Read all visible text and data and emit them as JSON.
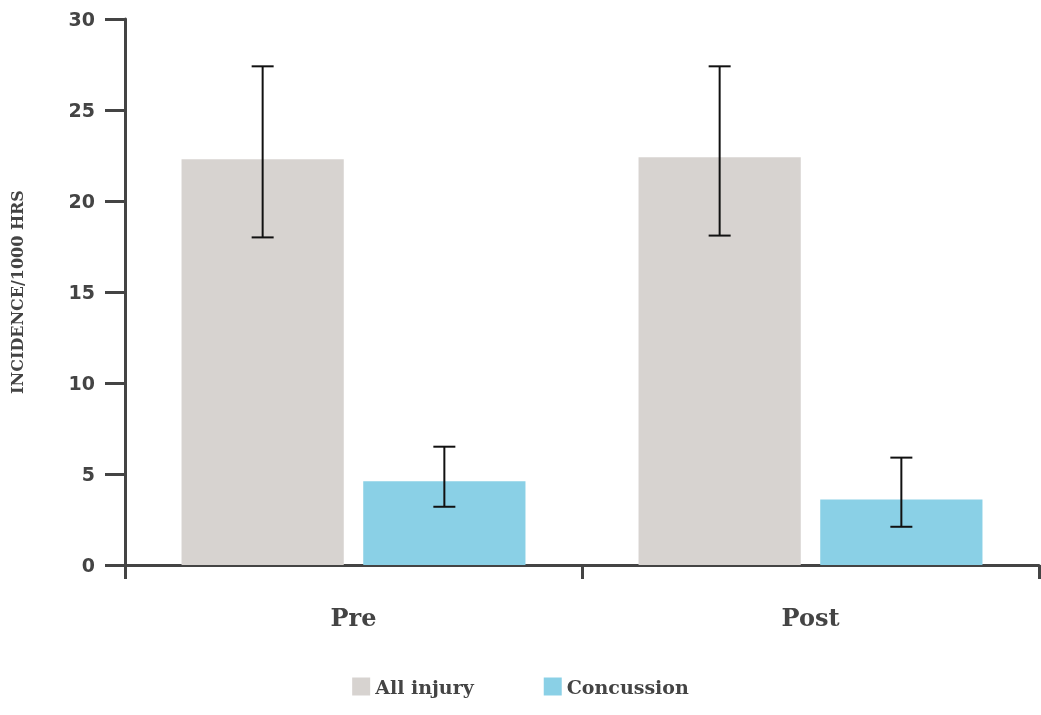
{
  "chart_data": {
    "type": "bar",
    "ylabel": "INCIDENCE/1000 HRS",
    "categories": [
      "Pre",
      "Post"
    ],
    "series": [
      {
        "name": "All injury",
        "color": "#d7d3d0",
        "values": [
          22.3,
          22.4
        ],
        "errors": [
          [
            18.0,
            27.4
          ],
          [
            18.1,
            27.4
          ]
        ]
      },
      {
        "name": "Concussion",
        "color": "#8ad0e6",
        "values": [
          4.6,
          3.6
        ],
        "errors": [
          [
            3.2,
            6.5
          ],
          [
            2.1,
            5.9
          ]
        ]
      }
    ],
    "ylim": [
      0,
      30
    ],
    "yticks": [
      0,
      5,
      10,
      15,
      20,
      25,
      30
    ],
    "grid": false,
    "legend": "bottom"
  }
}
